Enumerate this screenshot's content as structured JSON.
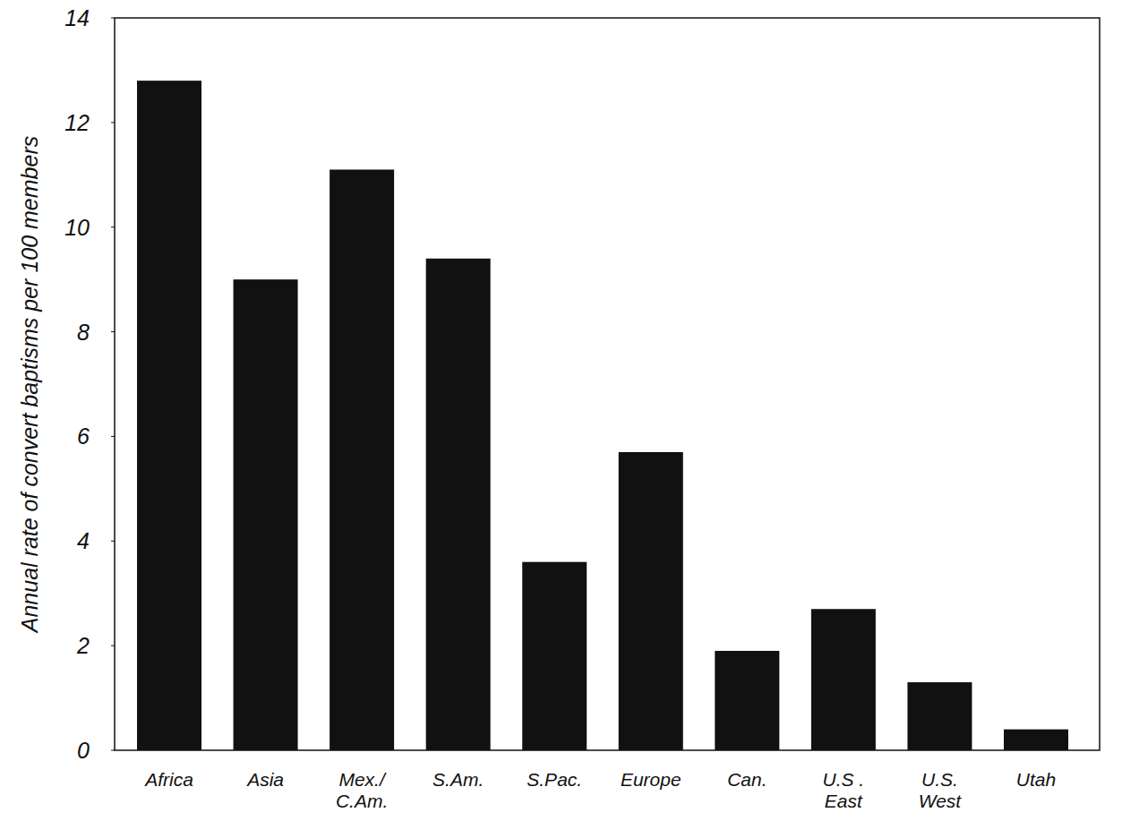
{
  "chart_data": {
    "type": "bar",
    "y_label": "Annual rate of convert baptisms per 100 members",
    "categories": [
      "Africa",
      "Asia",
      "Mex./\nC.Am.",
      "S.Am.",
      "S.Pac.",
      "Europe",
      "Can.",
      "U.S .\nEast",
      "U.S.\nWest",
      "Utah"
    ],
    "values": [
      12.8,
      9.0,
      11.1,
      9.4,
      3.6,
      5.7,
      1.9,
      2.7,
      1.3,
      0.4
    ],
    "color": "#111111",
    "ylim": [
      0,
      14
    ],
    "yticks": [
      0,
      2,
      4,
      6,
      8,
      10,
      12,
      14
    ],
    "grid": false
  }
}
